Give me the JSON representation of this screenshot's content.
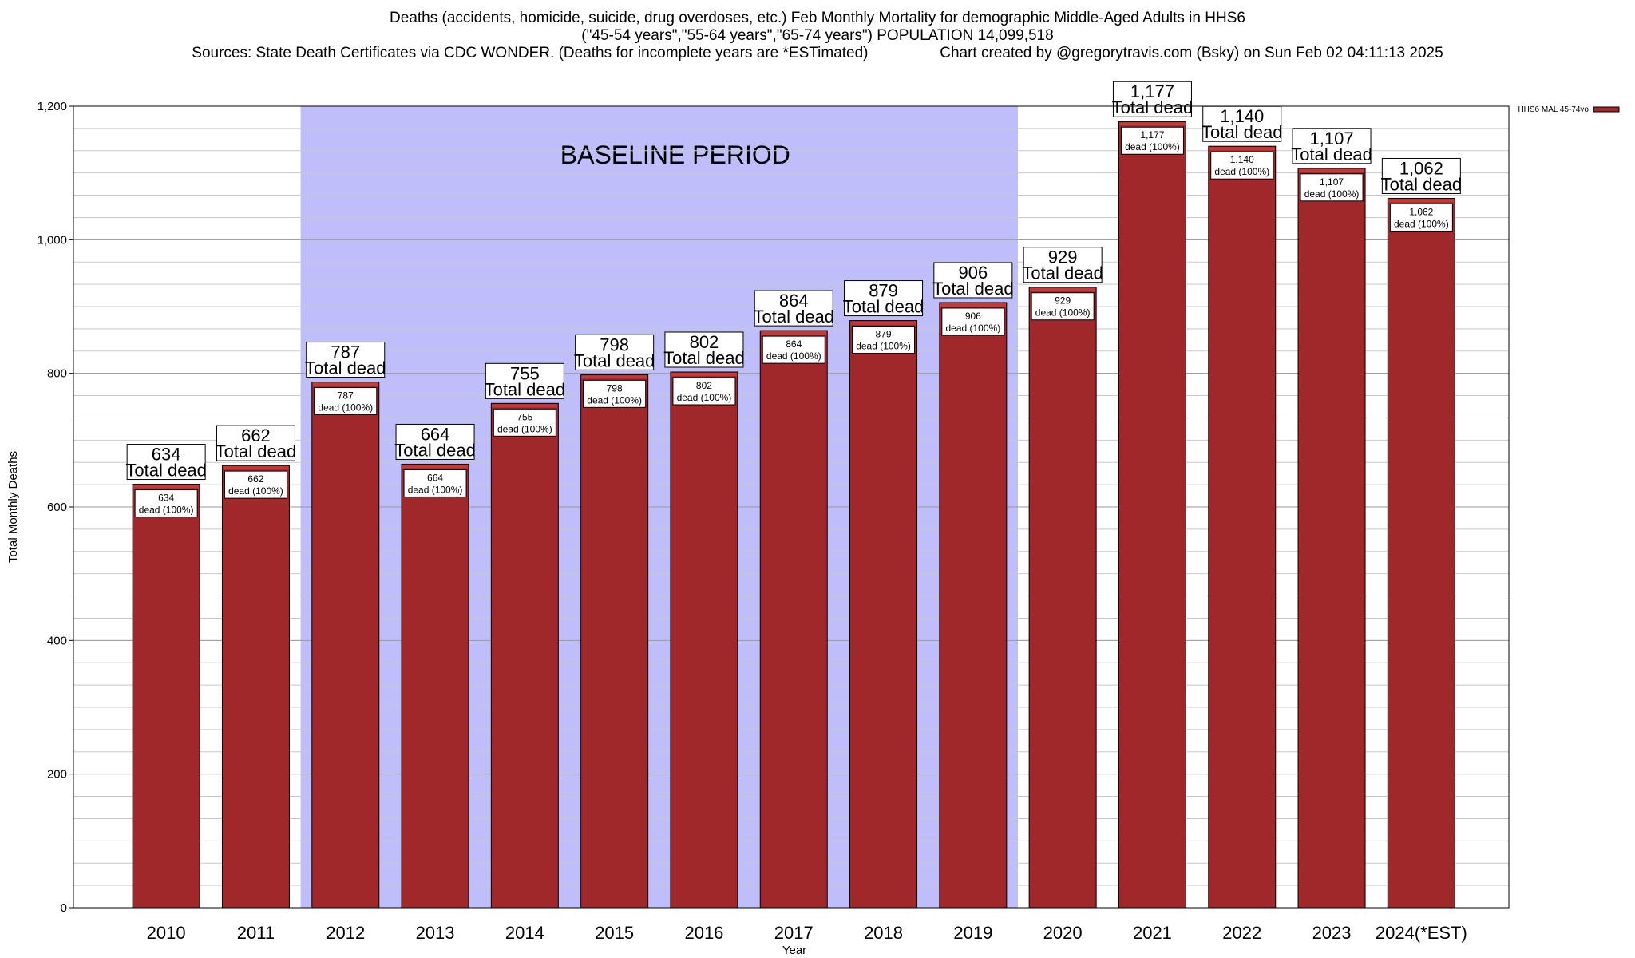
{
  "header": {
    "title_line1": "Deaths (accidents, homicide, suicide, drug overdoses, etc.) Feb Monthly Mortality for demographic Middle-Aged Adults in HHS6",
    "title_line2": "(\"45-54 years\",\"55-64 years\",\"65-74 years\") POPULATION 14,099,518",
    "title_line3_left": "Sources: State Death Certificates via CDC WONDER. (Deaths for incomplete years are *ESTimated)",
    "title_line3_right": "Chart created by @gregorytravis.com (Bsky) on Sun Feb 02 04:11:13 2025"
  },
  "chart_data": {
    "type": "bar",
    "categories": [
      "2010",
      "2011",
      "2012",
      "2013",
      "2014",
      "2015",
      "2016",
      "2017",
      "2018",
      "2019",
      "2020",
      "2021",
      "2022",
      "2023",
      "2024(*EST)"
    ],
    "series": [
      {
        "name": "HHS6 MAL 45-74yo",
        "values": [
          634,
          662,
          787,
          664,
          755,
          798,
          802,
          864,
          879,
          906,
          929,
          1177,
          1140,
          1107,
          1062
        ],
        "color": "#a0282a"
      }
    ],
    "value_labels": [
      "634",
      "662",
      "787",
      "664",
      "755",
      "798",
      "802",
      "864",
      "879",
      "906",
      "929",
      "1,177",
      "1,140",
      "1,107",
      "1,062"
    ],
    "total_label": "Total dead",
    "inner_label_line2": "dead (100%)",
    "ylabel": "Total Monthly Deaths",
    "xlabel": "Year",
    "ylim": [
      0,
      1200
    ],
    "yticks": [
      0,
      200,
      400,
      600,
      800,
      1000,
      1200
    ],
    "ytick_labels": [
      "0",
      "200",
      "400",
      "600",
      "800",
      "1,000",
      "1,200"
    ],
    "grid": true,
    "legend_position": "top-right",
    "baseline_period": {
      "label": "BASELINE PERIOD",
      "start": "2012",
      "end": "2019",
      "color": "#bebefa"
    },
    "top_cap_color": "#c23b3b"
  }
}
